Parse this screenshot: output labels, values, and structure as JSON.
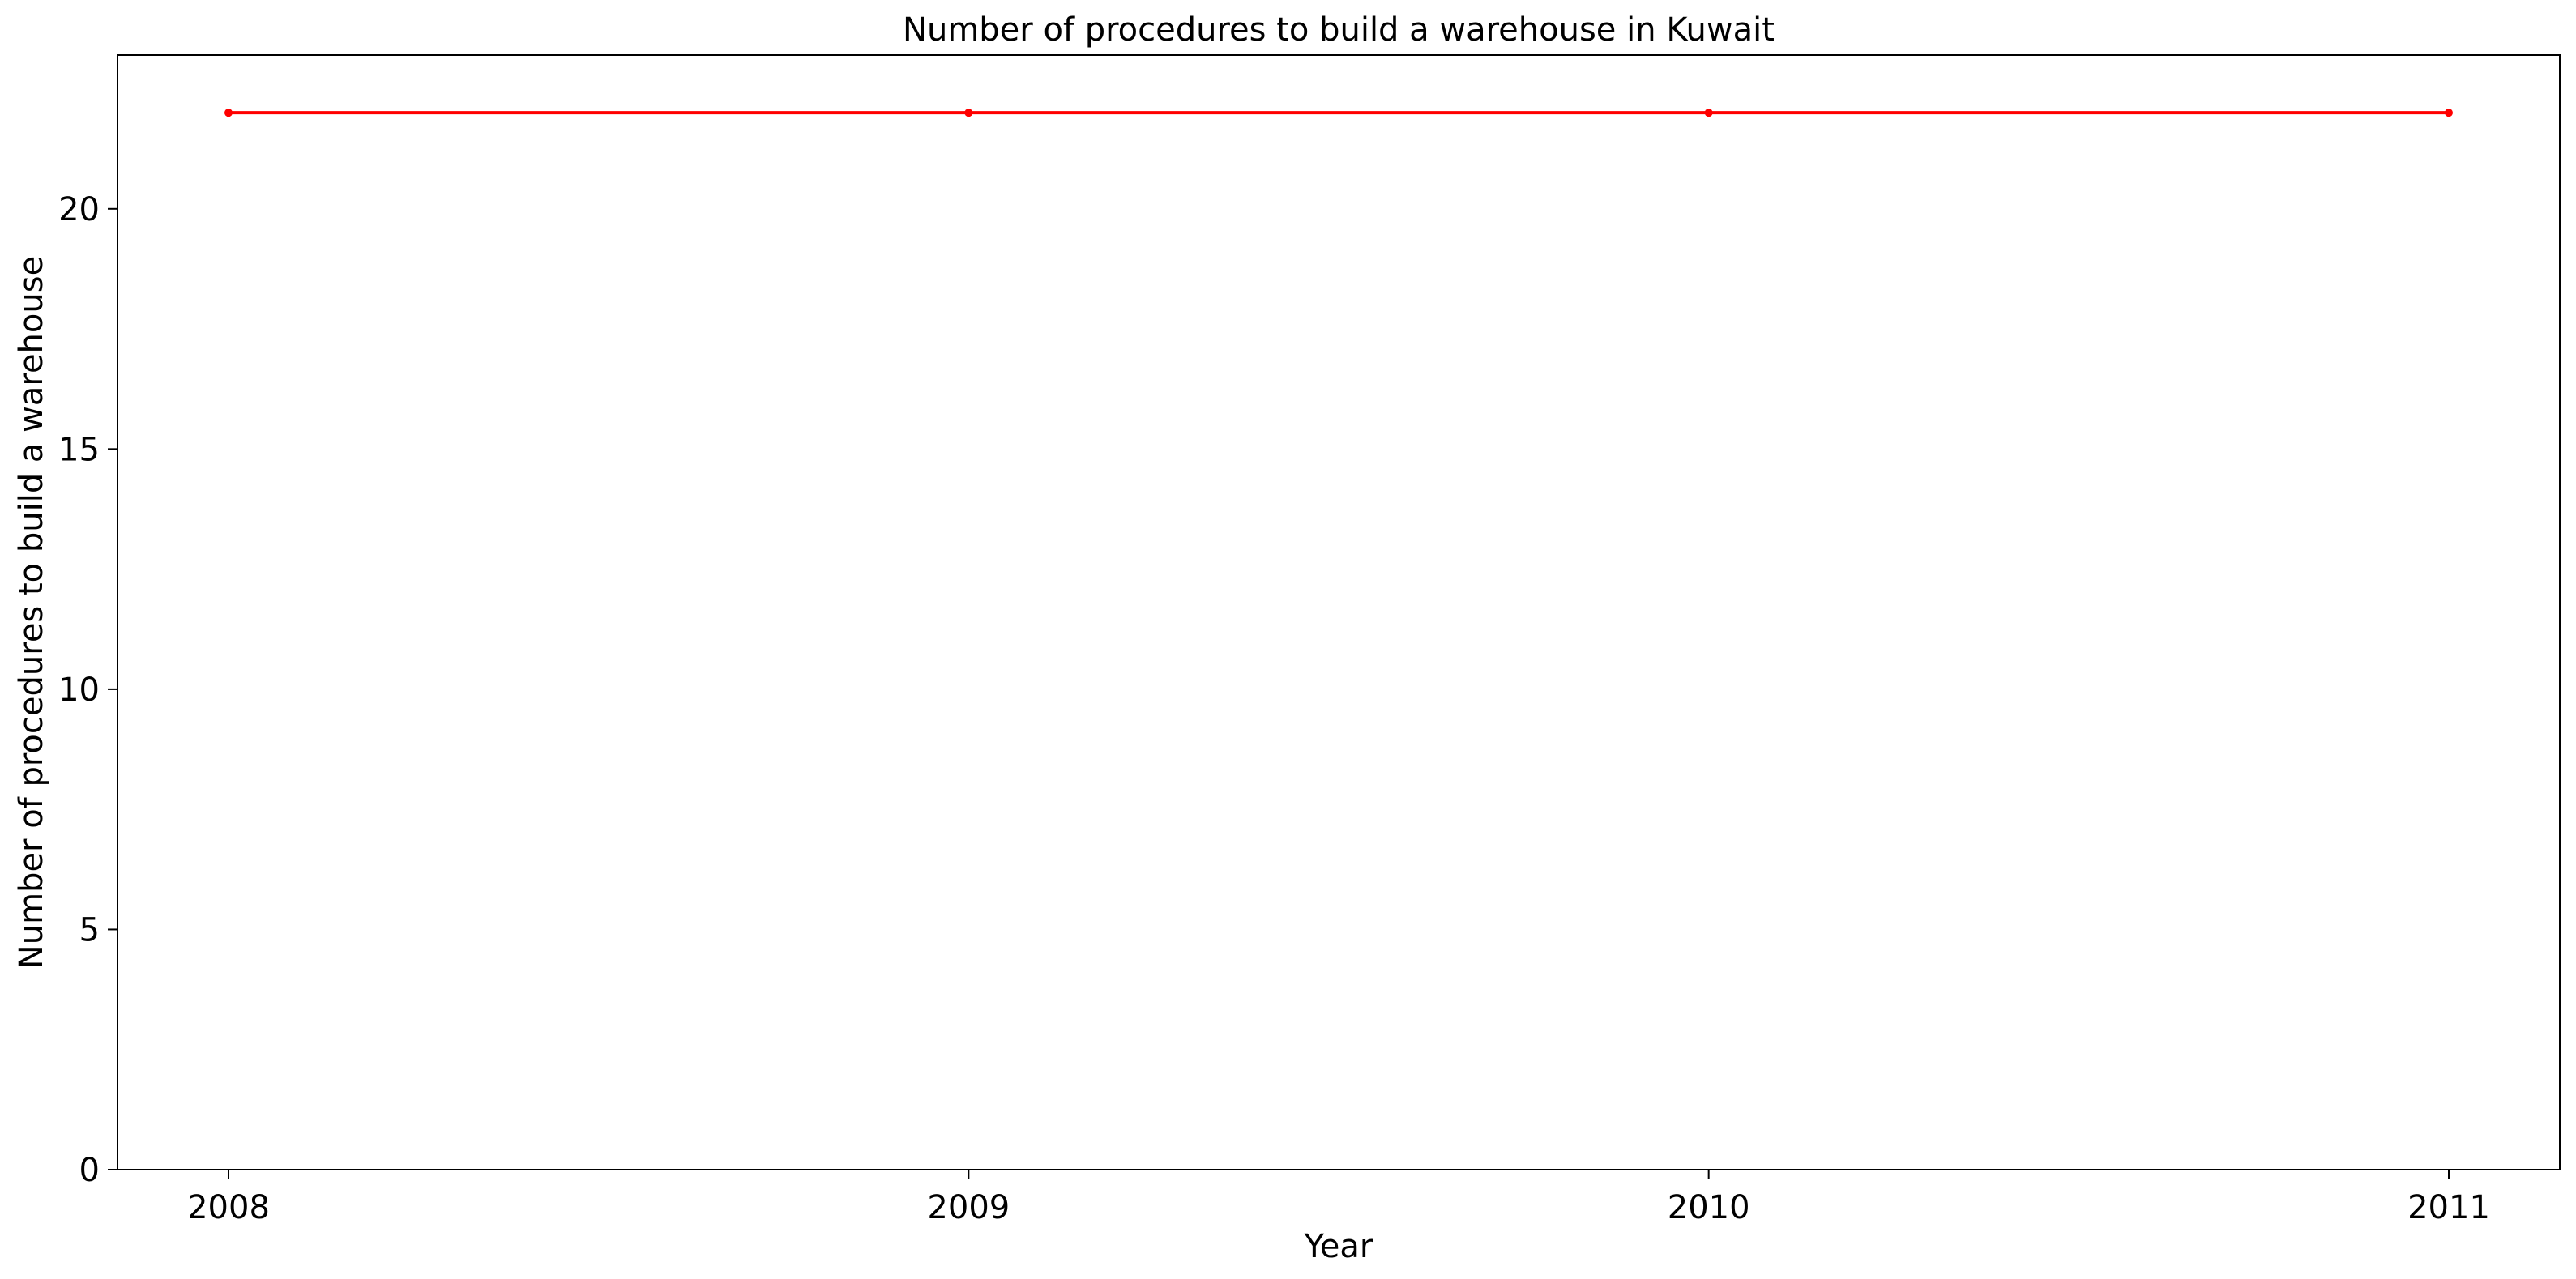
{
  "chart_data": {
    "type": "line",
    "title": "Number of procedures to build a warehouse in Kuwait",
    "xlabel": "Year",
    "ylabel": "Number of procedures to build a warehouse",
    "x": [
      2008,
      2009,
      2010,
      2011
    ],
    "x_tick_labels": [
      "2008",
      "2009",
      "2010",
      "2011"
    ],
    "y_ticks": [
      0,
      5,
      10,
      15,
      20
    ],
    "y_tick_labels": [
      "0",
      "5",
      "10",
      "15",
      "20"
    ],
    "xlim": [
      2007.85,
      2011.15
    ],
    "ylim": [
      0,
      23.2
    ],
    "grid": false,
    "series": [
      {
        "values": [
          22,
          22,
          22,
          22
        ],
        "color": "#ff0000",
        "marker": "circle"
      }
    ]
  }
}
